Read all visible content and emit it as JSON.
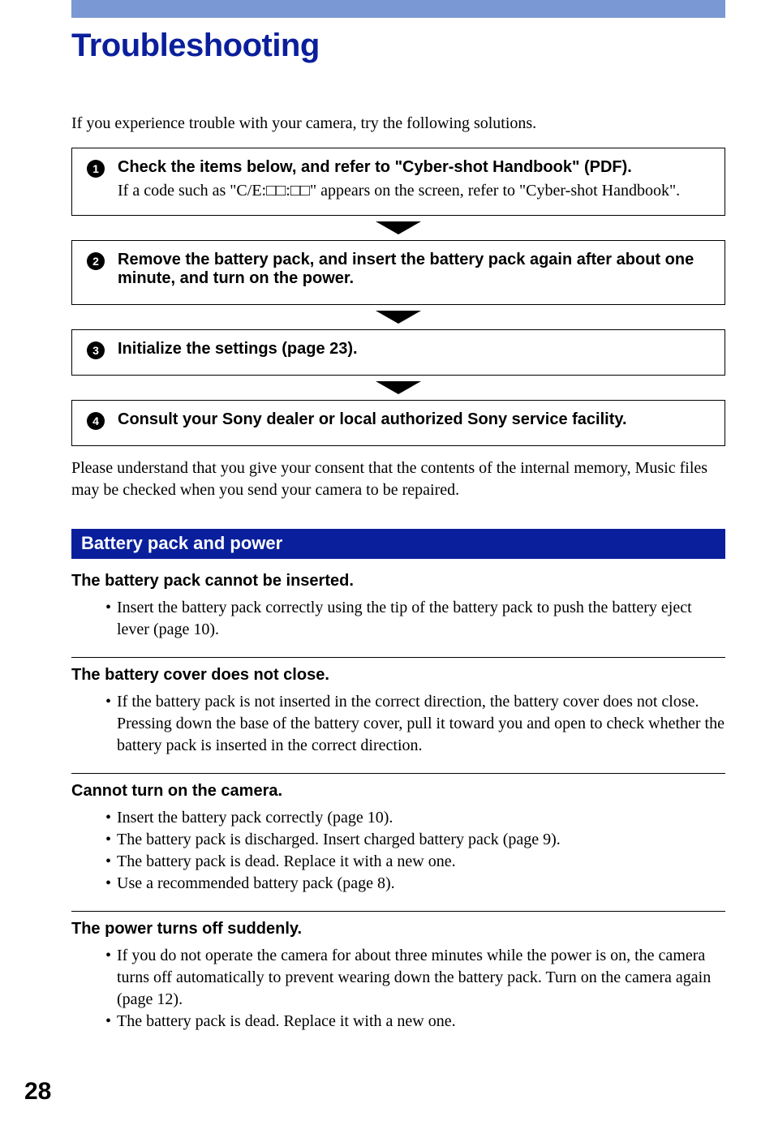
{
  "colors": {
    "top_bar": "#7a98d3",
    "title": "#0a1f9c",
    "section_header_bg": "#0a1f9c",
    "section_header_text": "#ffffff",
    "text": "#000000",
    "border": "#000000"
  },
  "title": "Troubleshooting",
  "intro": "If you experience trouble with your camera, try the following solutions.",
  "steps": [
    {
      "num": "1",
      "heading": "Check the items below, and refer to \"Cyber-shot Handbook\" (PDF).",
      "desc": "If a code such as \"C/E:□□:□□\" appears on the screen, refer to \"Cyber-shot Handbook\"."
    },
    {
      "num": "2",
      "heading": "Remove the battery pack, and insert the battery pack again after about one minute, and turn on the power.",
      "desc": ""
    },
    {
      "num": "3",
      "heading": "Initialize the settings (page 23).",
      "desc": ""
    },
    {
      "num": "4",
      "heading": "Consult your Sony dealer or local authorized Sony service facility.",
      "desc": ""
    }
  ],
  "consent": "Please understand that you give your consent that the contents of the internal memory, Music files may be checked when you send your camera to be repaired.",
  "section_header": "Battery pack and power",
  "issues": [
    {
      "title": "The battery pack cannot be inserted.",
      "items": [
        "Insert the battery pack correctly using the tip of the battery pack to push the battery eject lever (page 10)."
      ]
    },
    {
      "title": "The battery cover does not close.",
      "items": [
        "If the battery pack is not inserted in the correct direction, the battery cover does not close. Pressing down the base of the battery cover, pull it toward you and open to check whether the battery pack is inserted in the correct direction."
      ]
    },
    {
      "title": "Cannot turn on the camera.",
      "items": [
        "Insert the battery pack correctly (page 10).",
        "The battery pack is discharged. Insert charged battery pack (page 9).",
        "The battery pack is dead. Replace it with a new one.",
        "Use a recommended battery pack (page 8)."
      ]
    },
    {
      "title": "The power turns off suddenly.",
      "items": [
        "If you do not operate the camera for about three minutes while the power is on, the camera turns off automatically to prevent wearing down the battery pack. Turn on the camera again (page 12).",
        "The battery pack is dead. Replace it with a new one."
      ]
    }
  ],
  "page_number": "28"
}
